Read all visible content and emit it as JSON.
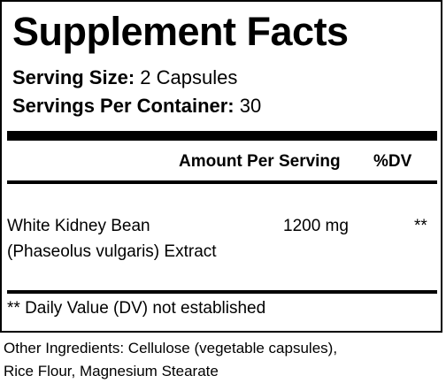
{
  "title": "Supplement Facts",
  "serving_size": {
    "label": "Serving Size:",
    "value": "2 Capsules"
  },
  "servings_per_container": {
    "label": "Servings Per Container:",
    "value": "30"
  },
  "table": {
    "header_amount": "Amount Per Serving",
    "header_dv": "%DV",
    "rows": [
      {
        "name_line1": "White Kidney Bean",
        "name_line2": "(Phaseolus vulgaris) Extract",
        "amount": "1200 mg",
        "dv": "**"
      }
    ]
  },
  "footnote": "** Daily Value (DV) not established",
  "other_ingredients": {
    "line1": "Other Ingredients: Cellulose (vegetable capsules),",
    "line2": "Rice Flour, Magnesium Stearate"
  },
  "colors": {
    "text": "#000000",
    "background": "#ffffff"
  }
}
